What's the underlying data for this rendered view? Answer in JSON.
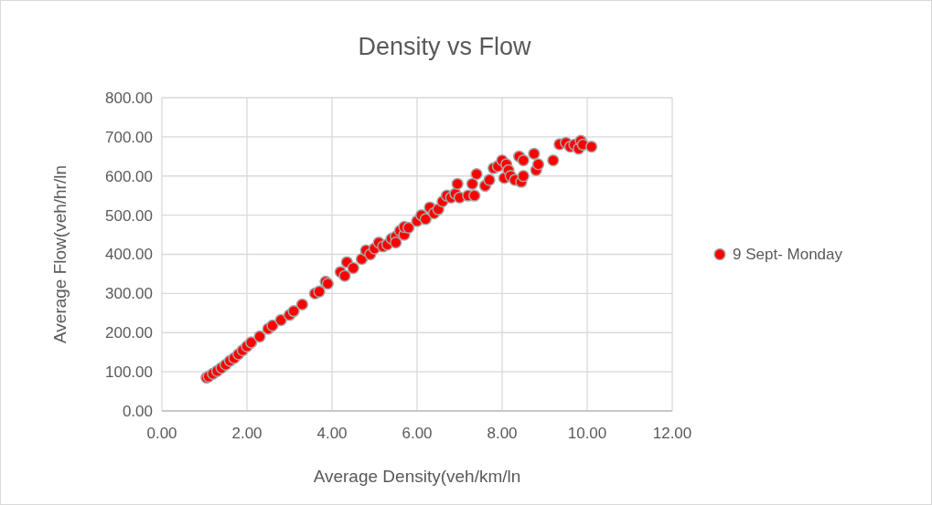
{
  "chart_data": {
    "type": "scatter",
    "title": "Density vs Flow",
    "xlabel": "Average Density(veh/km/ln",
    "ylabel": "Average Flow(veh/hr/ln",
    "xlim": [
      0,
      12
    ],
    "xticks": [
      {
        "value": 0,
        "label": "0.00"
      },
      {
        "value": 2,
        "label": "2.00"
      },
      {
        "value": 4,
        "label": "4.00"
      },
      {
        "value": 6,
        "label": "6.00"
      },
      {
        "value": 8,
        "label": "8.00"
      },
      {
        "value": 10,
        "label": "10.00"
      },
      {
        "value": 12,
        "label": "12.00"
      }
    ],
    "ylim": [
      0,
      800
    ],
    "yticks": [
      {
        "value": 0,
        "label": "0.00"
      },
      {
        "value": 100,
        "label": "100.00"
      },
      {
        "value": 200,
        "label": "200.00"
      },
      {
        "value": 300,
        "label": "300.00"
      },
      {
        "value": 400,
        "label": "400.00"
      },
      {
        "value": 500,
        "label": "500.00"
      },
      {
        "value": 600,
        "label": "600.00"
      },
      {
        "value": 700,
        "label": "700.00"
      },
      {
        "value": 800,
        "label": "800.00"
      }
    ],
    "grid": true,
    "legend": "right",
    "marker": "circle",
    "series": [
      {
        "name": "9 Sept- Monday",
        "color": "#ff0000",
        "x": [
          1.05,
          1.1,
          1.2,
          1.3,
          1.4,
          1.5,
          1.6,
          1.7,
          1.8,
          1.9,
          2.0,
          2.1,
          2.3,
          2.5,
          2.6,
          2.8,
          3.0,
          3.1,
          3.3,
          3.6,
          3.7,
          3.85,
          3.9,
          4.2,
          4.3,
          4.35,
          4.5,
          4.7,
          4.8,
          4.9,
          5.0,
          5.1,
          5.2,
          5.3,
          5.4,
          5.5,
          5.5,
          5.6,
          5.7,
          5.7,
          5.8,
          6.0,
          6.1,
          6.2,
          6.3,
          6.4,
          6.5,
          6.6,
          6.7,
          6.8,
          6.9,
          6.95,
          7.0,
          7.2,
          7.3,
          7.35,
          7.4,
          7.6,
          7.7,
          7.8,
          7.9,
          8.0,
          8.05,
          8.1,
          8.15,
          8.2,
          8.3,
          8.4,
          8.45,
          8.5,
          8.5,
          8.75,
          8.8,
          8.85,
          9.2,
          9.35,
          9.5,
          9.6,
          9.7,
          9.8,
          9.85,
          9.9,
          10.1
        ],
        "values": [
          85,
          88,
          95,
          102,
          110,
          118,
          128,
          135,
          145,
          155,
          165,
          175,
          190,
          210,
          218,
          232,
          245,
          255,
          272,
          300,
          305,
          330,
          325,
          355,
          345,
          380,
          365,
          388,
          410,
          400,
          415,
          430,
          420,
          425,
          440,
          445,
          430,
          460,
          450,
          470,
          468,
          485,
          500,
          490,
          520,
          505,
          515,
          535,
          550,
          545,
          555,
          580,
          545,
          550,
          580,
          550,
          605,
          575,
          590,
          620,
          625,
          640,
          595,
          630,
          615,
          600,
          590,
          650,
          585,
          640,
          600,
          657,
          615,
          630,
          640,
          681,
          685,
          675,
          680,
          670,
          690,
          680,
          675
        ]
      }
    ]
  }
}
